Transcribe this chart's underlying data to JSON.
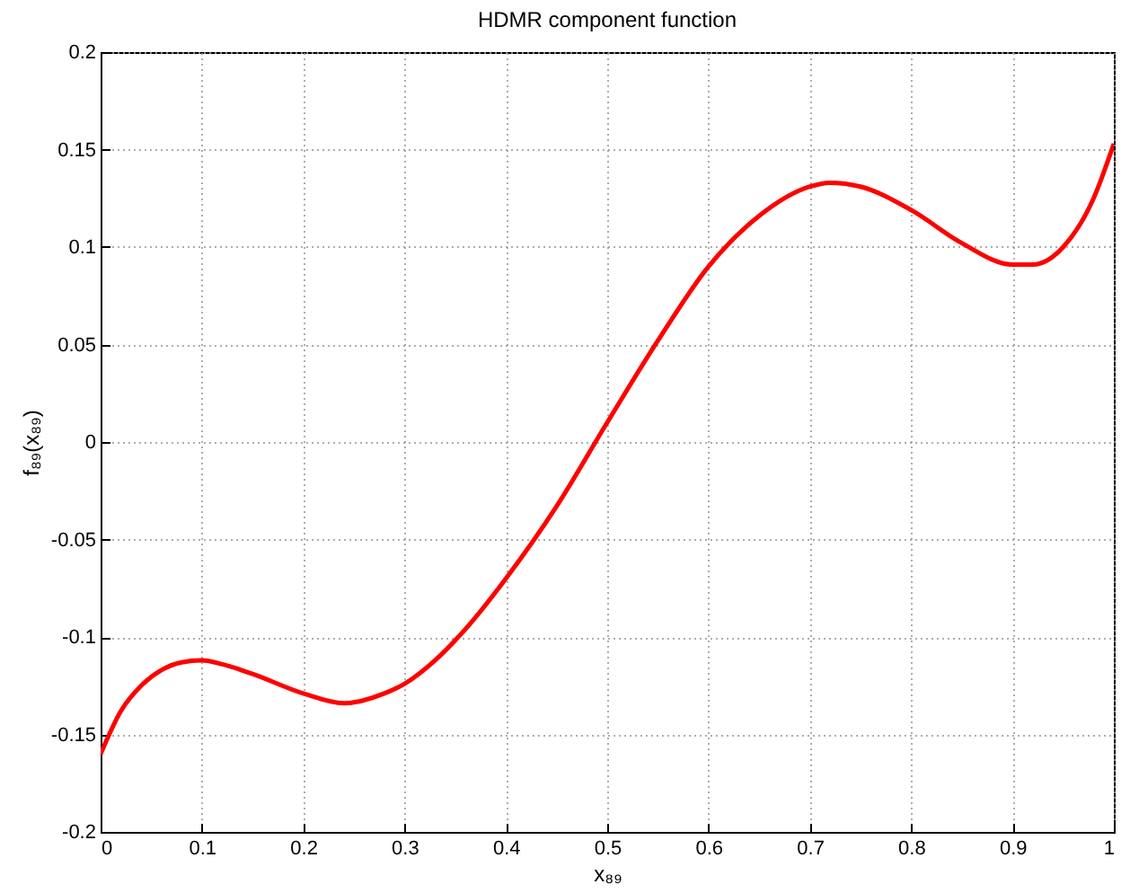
{
  "chart_data": {
    "type": "line",
    "title": "HDMR component function",
    "xlabel": "x₈₉",
    "ylabel": "f₈₉(x₈₉)",
    "x": [
      0,
      0.02,
      0.04,
      0.06,
      0.08,
      0.1,
      0.12,
      0.15,
      0.2,
      0.24,
      0.28,
      0.3,
      0.33,
      0.36,
      0.4,
      0.45,
      0.5,
      0.55,
      0.6,
      0.65,
      0.7,
      0.72,
      0.75,
      0.8,
      0.85,
      0.9,
      0.92,
      0.95,
      0.98,
      1
    ],
    "series": [
      {
        "color": "#ff0000",
        "values": [
          -0.16,
          -0.138,
          -0.125,
          -0.117,
          -0.113,
          -0.112,
          -0.114,
          -0.119,
          -0.129,
          -0.134,
          -0.129,
          -0.124,
          -0.112,
          -0.096,
          -0.07,
          -0.033,
          0.01,
          0.052,
          0.09,
          0.116,
          0.131,
          0.133,
          0.131,
          0.119,
          0.102,
          0.091,
          0.091,
          0.1,
          0.125,
          0.153
        ]
      }
    ],
    "xlim": [
      0,
      1
    ],
    "xticks": [
      0,
      0.1,
      0.2,
      0.3,
      0.4,
      0.5,
      0.6,
      0.7,
      0.8,
      0.9,
      1
    ],
    "ylim": [
      -0.2,
      0.2
    ],
    "yticks": [
      -0.2,
      -0.15,
      -0.1,
      -0.05,
      0,
      0.05,
      0.1,
      0.15,
      0.2
    ],
    "grid": true,
    "line_style": "solid"
  }
}
